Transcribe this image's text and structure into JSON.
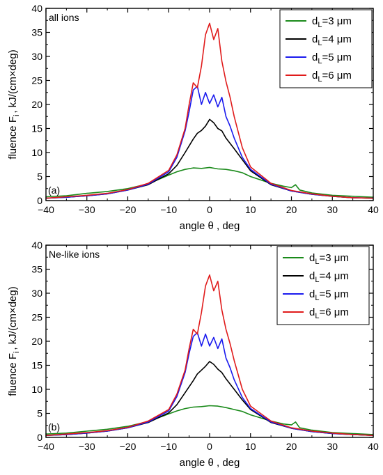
{
  "chart_data": [
    {
      "type": "line",
      "panel_tag": "(a)",
      "annotation": "all ions",
      "xlabel_main": "angle θ , deg",
      "ylabel_prefix": "fluence F",
      "ylabel_sub": "i",
      "ylabel_suffix": ", kJ/(cm×deg)",
      "xlim": [
        -40,
        40
      ],
      "ylim": [
        0,
        40
      ],
      "x_ticks": [
        "−40",
        "−30",
        "−20",
        "−10",
        "0",
        "10",
        "20",
        "30",
        "40"
      ],
      "y_ticks": [
        "0",
        "5",
        "10",
        "15",
        "20",
        "25",
        "30",
        "35",
        "40"
      ],
      "legend_position": "top-right",
      "grid": false,
      "series": [
        {
          "name": "d_L=3 μm",
          "label_main": "d",
          "label_sub": "L",
          "label_rest": "=3 μm",
          "color": "#1a8a1a",
          "x": [
            -40,
            -35,
            -30,
            -25,
            -20,
            -15,
            -10,
            -8,
            -6,
            -4,
            -2,
            0,
            2,
            4,
            6,
            8,
            10,
            15,
            18,
            20,
            21,
            22,
            25,
            30,
            35,
            40
          ],
          "y": [
            0.8,
            1.0,
            1.5,
            1.9,
            2.5,
            3.5,
            5.3,
            6.0,
            6.5,
            6.8,
            6.7,
            6.9,
            6.6,
            6.5,
            6.2,
            5.8,
            5.0,
            3.6,
            3.0,
            2.7,
            3.3,
            2.2,
            1.6,
            1.1,
            0.9,
            0.7
          ]
        },
        {
          "name": "d_L=4 μm",
          "label_main": "d",
          "label_sub": "L",
          "label_rest": "=4 μm",
          "color": "#000000",
          "x": [
            -40,
            -35,
            -30,
            -25,
            -20,
            -15,
            -10,
            -8,
            -6,
            -4,
            -3,
            -2,
            -1,
            0,
            1,
            2,
            3,
            4,
            6,
            8,
            10,
            15,
            20,
            25,
            30,
            35,
            40
          ],
          "y": [
            0.5,
            0.7,
            1.0,
            1.4,
            2.2,
            3.3,
            5.6,
            7.3,
            10.0,
            12.8,
            14.0,
            14.6,
            15.5,
            16.9,
            16.2,
            15.0,
            14.5,
            13.0,
            10.8,
            8.5,
            6.2,
            3.3,
            2.0,
            1.3,
            0.9,
            0.6,
            0.5
          ]
        },
        {
          "name": "d_L=5 μm",
          "label_main": "d",
          "label_sub": "L",
          "label_rest": "=5 μm",
          "color": "#1a1aee",
          "x": [
            -40,
            -35,
            -30,
            -25,
            -20,
            -15,
            -10,
            -8,
            -6,
            -5,
            -4,
            -3,
            -2,
            -1,
            0,
            1,
            2,
            3,
            4,
            5,
            6,
            8,
            10,
            15,
            20,
            25,
            30,
            35,
            40
          ],
          "y": [
            0.5,
            0.7,
            1.0,
            1.4,
            2.2,
            3.4,
            6.0,
            9.0,
            14.5,
            18.5,
            23.0,
            23.8,
            20.0,
            22.5,
            20.2,
            22.0,
            19.5,
            21.5,
            17.5,
            15.5,
            13.0,
            9.0,
            6.5,
            3.4,
            2.0,
            1.3,
            0.9,
            0.6,
            0.5
          ]
        },
        {
          "name": "d_L=6 μm",
          "label_main": "d",
          "label_sub": "L",
          "label_rest": "=6 μm",
          "color": "#e01b1b",
          "x": [
            -40,
            -35,
            -30,
            -25,
            -20,
            -15,
            -10,
            -8,
            -6,
            -5,
            -4,
            -3,
            -2,
            -1,
            0,
            1,
            2,
            3,
            4,
            5,
            6,
            8,
            10,
            15,
            20,
            25,
            30,
            35,
            40
          ],
          "y": [
            0.5,
            0.8,
            1.1,
            1.5,
            2.3,
            3.6,
            6.3,
            9.5,
            15.0,
            20.0,
            24.5,
            23.5,
            28.0,
            34.5,
            36.9,
            33.5,
            35.8,
            29.0,
            24.8,
            21.5,
            17.5,
            11.0,
            7.0,
            3.6,
            2.1,
            1.4,
            0.9,
            0.6,
            0.5
          ]
        }
      ]
    },
    {
      "type": "line",
      "panel_tag": "(b)",
      "annotation": "Ne-like ions",
      "xlabel_main": "angle θ , deg",
      "ylabel_prefix": "fluence F",
      "ylabel_sub": "i",
      "ylabel_suffix": ", kJ/(cm×deg)",
      "xlim": [
        -40,
        40
      ],
      "ylim": [
        0,
        40
      ],
      "x_ticks": [
        "−40",
        "−30",
        "−20",
        "−10",
        "0",
        "10",
        "20",
        "30",
        "40"
      ],
      "y_ticks": [
        "0",
        "5",
        "10",
        "15",
        "20",
        "25",
        "30",
        "35",
        "40"
      ],
      "legend_position": "top-right",
      "grid": false,
      "series": [
        {
          "name": "d_L=3 μm",
          "label_main": "d",
          "label_sub": "L",
          "label_rest": "=3 μm",
          "color": "#1a8a1a",
          "x": [
            -40,
            -35,
            -30,
            -25,
            -20,
            -15,
            -10,
            -8,
            -6,
            -4,
            -2,
            0,
            2,
            4,
            6,
            8,
            10,
            15,
            18,
            20,
            21,
            22,
            25,
            30,
            35,
            40
          ],
          "y": [
            0.7,
            0.9,
            1.3,
            1.7,
            2.3,
            3.3,
            4.9,
            5.5,
            6.0,
            6.3,
            6.4,
            6.6,
            6.5,
            6.2,
            5.8,
            5.4,
            4.7,
            3.4,
            2.8,
            2.6,
            3.2,
            2.0,
            1.5,
            1.0,
            0.8,
            0.6
          ]
        },
        {
          "name": "d_L=4 μm",
          "label_main": "d",
          "label_sub": "L",
          "label_rest": "=4 μm",
          "color": "#000000",
          "x": [
            -40,
            -35,
            -30,
            -25,
            -20,
            -15,
            -10,
            -8,
            -6,
            -4,
            -3,
            -2,
            -1,
            0,
            1,
            2,
            3,
            4,
            6,
            8,
            10,
            15,
            20,
            25,
            30,
            35,
            40
          ],
          "y": [
            0.4,
            0.6,
            0.9,
            1.3,
            2.0,
            3.1,
            5.1,
            6.8,
            9.3,
            11.8,
            13.2,
            14.0,
            14.8,
            15.8,
            15.2,
            14.2,
            13.5,
            12.2,
            10.0,
            7.8,
            5.8,
            3.1,
            1.9,
            1.2,
            0.8,
            0.6,
            0.4
          ]
        },
        {
          "name": "d_L=5 μm",
          "label_main": "d",
          "label_sub": "L",
          "label_rest": "=5 μm",
          "color": "#1a1aee",
          "x": [
            -40,
            -35,
            -30,
            -25,
            -20,
            -15,
            -10,
            -8,
            -6,
            -5,
            -4,
            -3,
            -2,
            -1,
            0,
            1,
            2,
            3,
            4,
            5,
            6,
            8,
            10,
            15,
            20,
            25,
            30,
            35,
            40
          ],
          "y": [
            0.4,
            0.6,
            0.9,
            1.3,
            2.0,
            3.2,
            5.5,
            8.5,
            13.5,
            17.5,
            21.0,
            21.8,
            19.0,
            21.5,
            19.0,
            20.8,
            18.5,
            20.5,
            16.5,
            14.5,
            12.0,
            8.3,
            6.0,
            3.2,
            1.9,
            1.2,
            0.8,
            0.6,
            0.4
          ]
        },
        {
          "name": "d_L=6 μm",
          "label_main": "d",
          "label_sub": "L",
          "label_rest": "=6 μm",
          "color": "#e01b1b",
          "x": [
            -40,
            -35,
            -30,
            -25,
            -20,
            -15,
            -10,
            -8,
            -6,
            -5,
            -4,
            -3,
            -2,
            -1,
            0,
            1,
            2,
            3,
            4,
            5,
            6,
            8,
            10,
            15,
            20,
            25,
            30,
            35,
            40
          ],
          "y": [
            0.4,
            0.7,
            1.0,
            1.4,
            2.1,
            3.4,
            5.8,
            9.0,
            14.0,
            18.5,
            22.5,
            21.5,
            26.0,
            31.5,
            33.8,
            30.5,
            32.5,
            26.5,
            22.5,
            19.5,
            16.0,
            10.0,
            6.5,
            3.4,
            2.0,
            1.3,
            0.9,
            0.6,
            0.4
          ]
        }
      ]
    }
  ]
}
